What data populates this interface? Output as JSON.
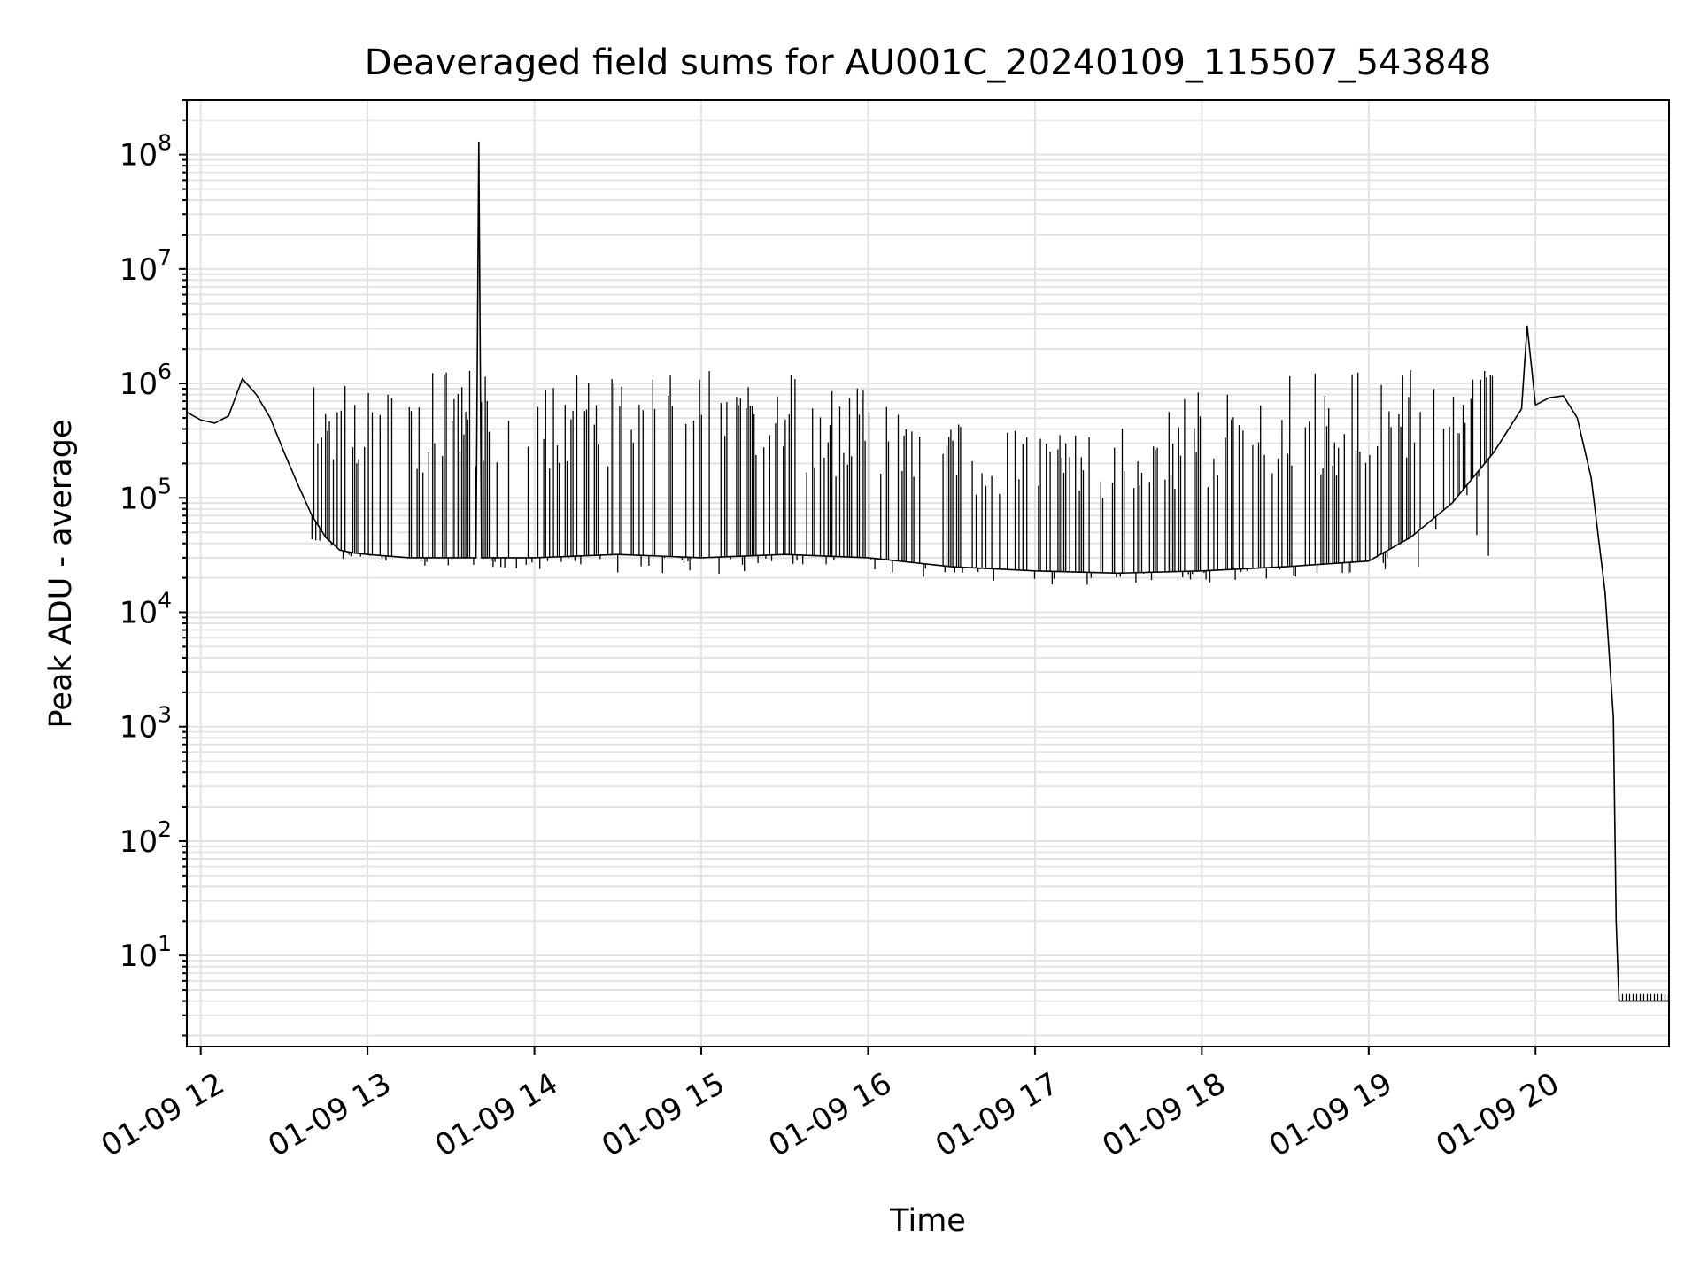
{
  "chart_data": {
    "type": "line",
    "title": "Deaveraged field sums for AU001C_20240109_115507_543848",
    "xlabel": "Time",
    "ylabel": "Peak ADU - average",
    "yscale": "log",
    "ylim": [
      1.6,
      300000000
    ],
    "xlim": [
      "2024-01-09 11:55",
      "2024-01-09 20:48"
    ],
    "x_ticks": [
      "2024-01-09 12:00",
      "2024-01-09 13:00",
      "2024-01-09 14:00",
      "2024-01-09 15:00",
      "2024-01-09 16:00",
      "2024-01-09 17:00",
      "2024-01-09 18:00",
      "2024-01-09 19:00",
      "2024-01-09 20:00"
    ],
    "x_tick_labels": [
      "01-09 12",
      "01-09 13",
      "01-09 14",
      "01-09 15",
      "01-09 16",
      "01-09 17",
      "01-09 18",
      "01-09 19",
      "01-09 20"
    ],
    "y_tick_labels": [
      {
        "base": "10",
        "exp": "1"
      },
      {
        "base": "10",
        "exp": "2"
      },
      {
        "base": "10",
        "exp": "3"
      },
      {
        "base": "10",
        "exp": "4"
      },
      {
        "base": "10",
        "exp": "5"
      },
      {
        "base": "10",
        "exp": "6"
      },
      {
        "base": "10",
        "exp": "7"
      },
      {
        "base": "10",
        "exp": "8"
      }
    ],
    "grid": true,
    "line_color": "#000000",
    "series": [
      {
        "x": [
          "2024-01-09 11:55",
          "2024-01-09 12:00",
          "2024-01-09 12:05",
          "2024-01-09 12:10",
          "2024-01-09 12:15",
          "2024-01-09 12:20",
          "2024-01-09 12:25",
          "2024-01-09 12:30",
          "2024-01-09 12:35",
          "2024-01-09 12:40",
          "2024-01-09 12:45",
          "2024-01-09 12:50",
          "2024-01-09 12:55",
          "2024-01-09 13:00",
          "2024-01-09 13:15",
          "2024-01-09 13:30",
          "2024-01-09 13:39",
          "2024-01-09 13:40",
          "2024-01-09 13:41",
          "2024-01-09 14:00",
          "2024-01-09 14:30",
          "2024-01-09 15:00",
          "2024-01-09 15:30",
          "2024-01-09 16:00",
          "2024-01-09 16:30",
          "2024-01-09 17:00",
          "2024-01-09 17:30",
          "2024-01-09 18:00",
          "2024-01-09 18:30",
          "2024-01-09 19:00",
          "2024-01-09 19:15",
          "2024-01-09 19:30",
          "2024-01-09 19:45",
          "2024-01-09 19:55",
          "2024-01-09 19:57",
          "2024-01-09 20:00",
          "2024-01-09 20:05",
          "2024-01-09 20:10",
          "2024-01-09 20:15",
          "2024-01-09 20:20",
          "2024-01-09 20:25",
          "2024-01-09 20:28",
          "2024-01-09 20:29",
          "2024-01-09 20:30",
          "2024-01-09 20:35",
          "2024-01-09 20:40",
          "2024-01-09 20:48"
        ],
        "y": [
          560000,
          480000,
          450000,
          520000,
          1100000,
          800000,
          500000,
          250000,
          130000,
          70000,
          45000,
          35000,
          33000,
          32000,
          30000,
          30000,
          30000,
          130000000,
          30000,
          30000,
          32000,
          30000,
          32000,
          30000,
          25000,
          23000,
          22000,
          23000,
          25000,
          28000,
          45000,
          90000,
          250000,
          600000,
          3200000,
          650000,
          750000,
          780000,
          500000,
          150000,
          15000,
          1200,
          20,
          4,
          4,
          4,
          4
        ],
        "spikes": {
          "x": [
            "2024-01-09 12:40",
            "2024-01-09 13:00",
            "2024-01-09 13:30",
            "2024-01-09 14:00",
            "2024-01-09 14:30",
            "2024-01-09 15:00",
            "2024-01-09 15:30",
            "2024-01-09 16:00",
            "2024-01-09 16:30",
            "2024-01-09 17:00",
            "2024-01-09 17:30",
            "2024-01-09 18:00",
            "2024-01-09 18:30",
            "2024-01-09 19:00",
            "2024-01-09 19:30",
            "2024-01-09 19:45"
          ],
          "y_high": [
            1400000,
            1300000,
            1300000,
            1350000,
            1300000,
            1300000,
            1200000,
            900000,
            500000,
            400000,
            500000,
            900000,
            1200000,
            1300000,
            1350000,
            1300000
          ],
          "y_low": [
            30000,
            25000,
            25000,
            24000,
            22000,
            20000,
            25000,
            22000,
            18000,
            17000,
            17000,
            18000,
            20000,
            22000,
            26000,
            30000
          ]
        }
      }
    ]
  }
}
